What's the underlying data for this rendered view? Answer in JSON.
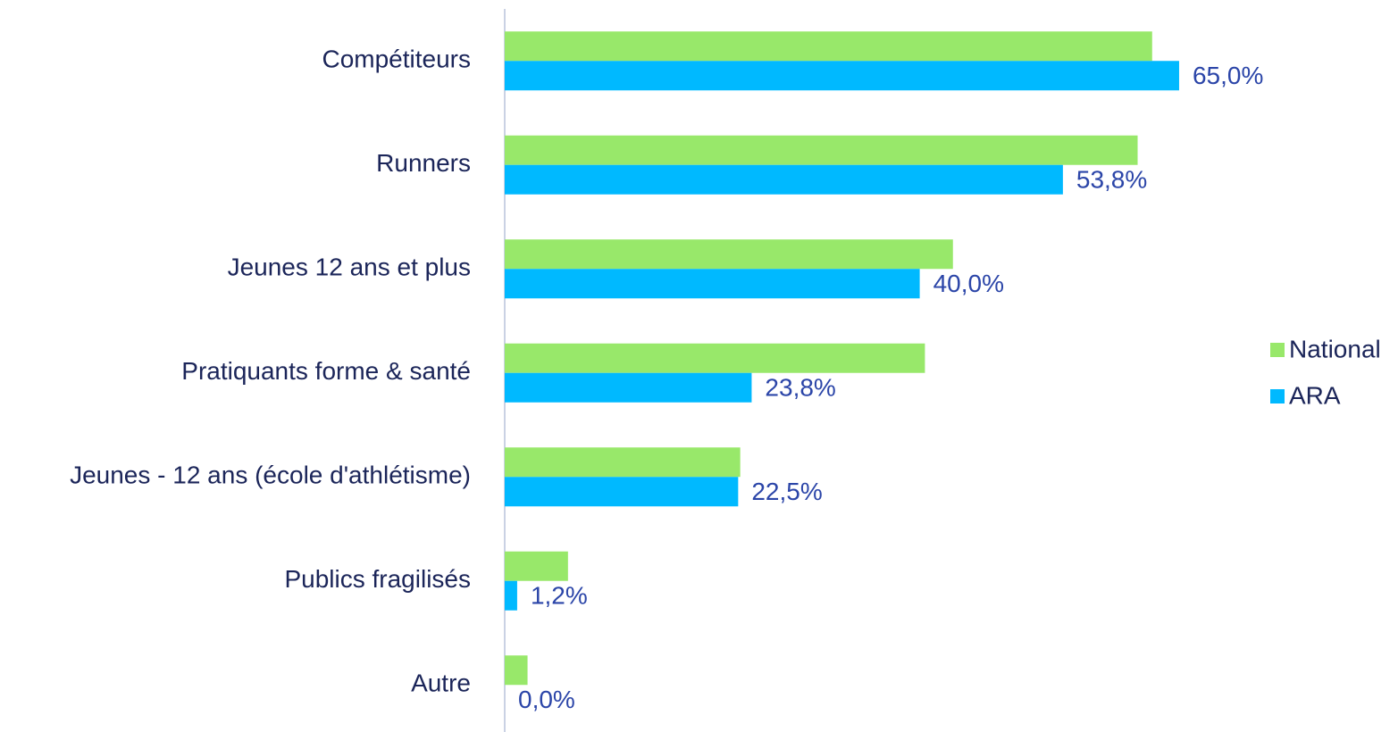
{
  "chart_data": {
    "type": "hbar",
    "categories": [
      "Compétiteurs",
      "Runners",
      "Jeunes 12 ans et plus",
      "Pratiquants forme & santé",
      "Jeunes - 12 ans (école d'athlétisme)",
      "Publics fragilisés",
      "Autre"
    ],
    "series": [
      {
        "name": "National",
        "color": "#98e86a",
        "values": [
          62.4,
          61.0,
          43.2,
          40.5,
          22.7,
          6.1,
          2.2
        ]
      },
      {
        "name": "ARA",
        "color": "#00b9ff",
        "values": [
          65.0,
          53.8,
          40.0,
          23.8,
          22.5,
          1.2,
          0.0
        ],
        "value_labels": [
          "65,0%",
          "53,8%",
          "40,0%",
          "23,8%",
          "22,5%",
          "1,2%",
          "0,0%"
        ]
      }
    ],
    "xlim": [
      0,
      70
    ],
    "legend": "right"
  }
}
